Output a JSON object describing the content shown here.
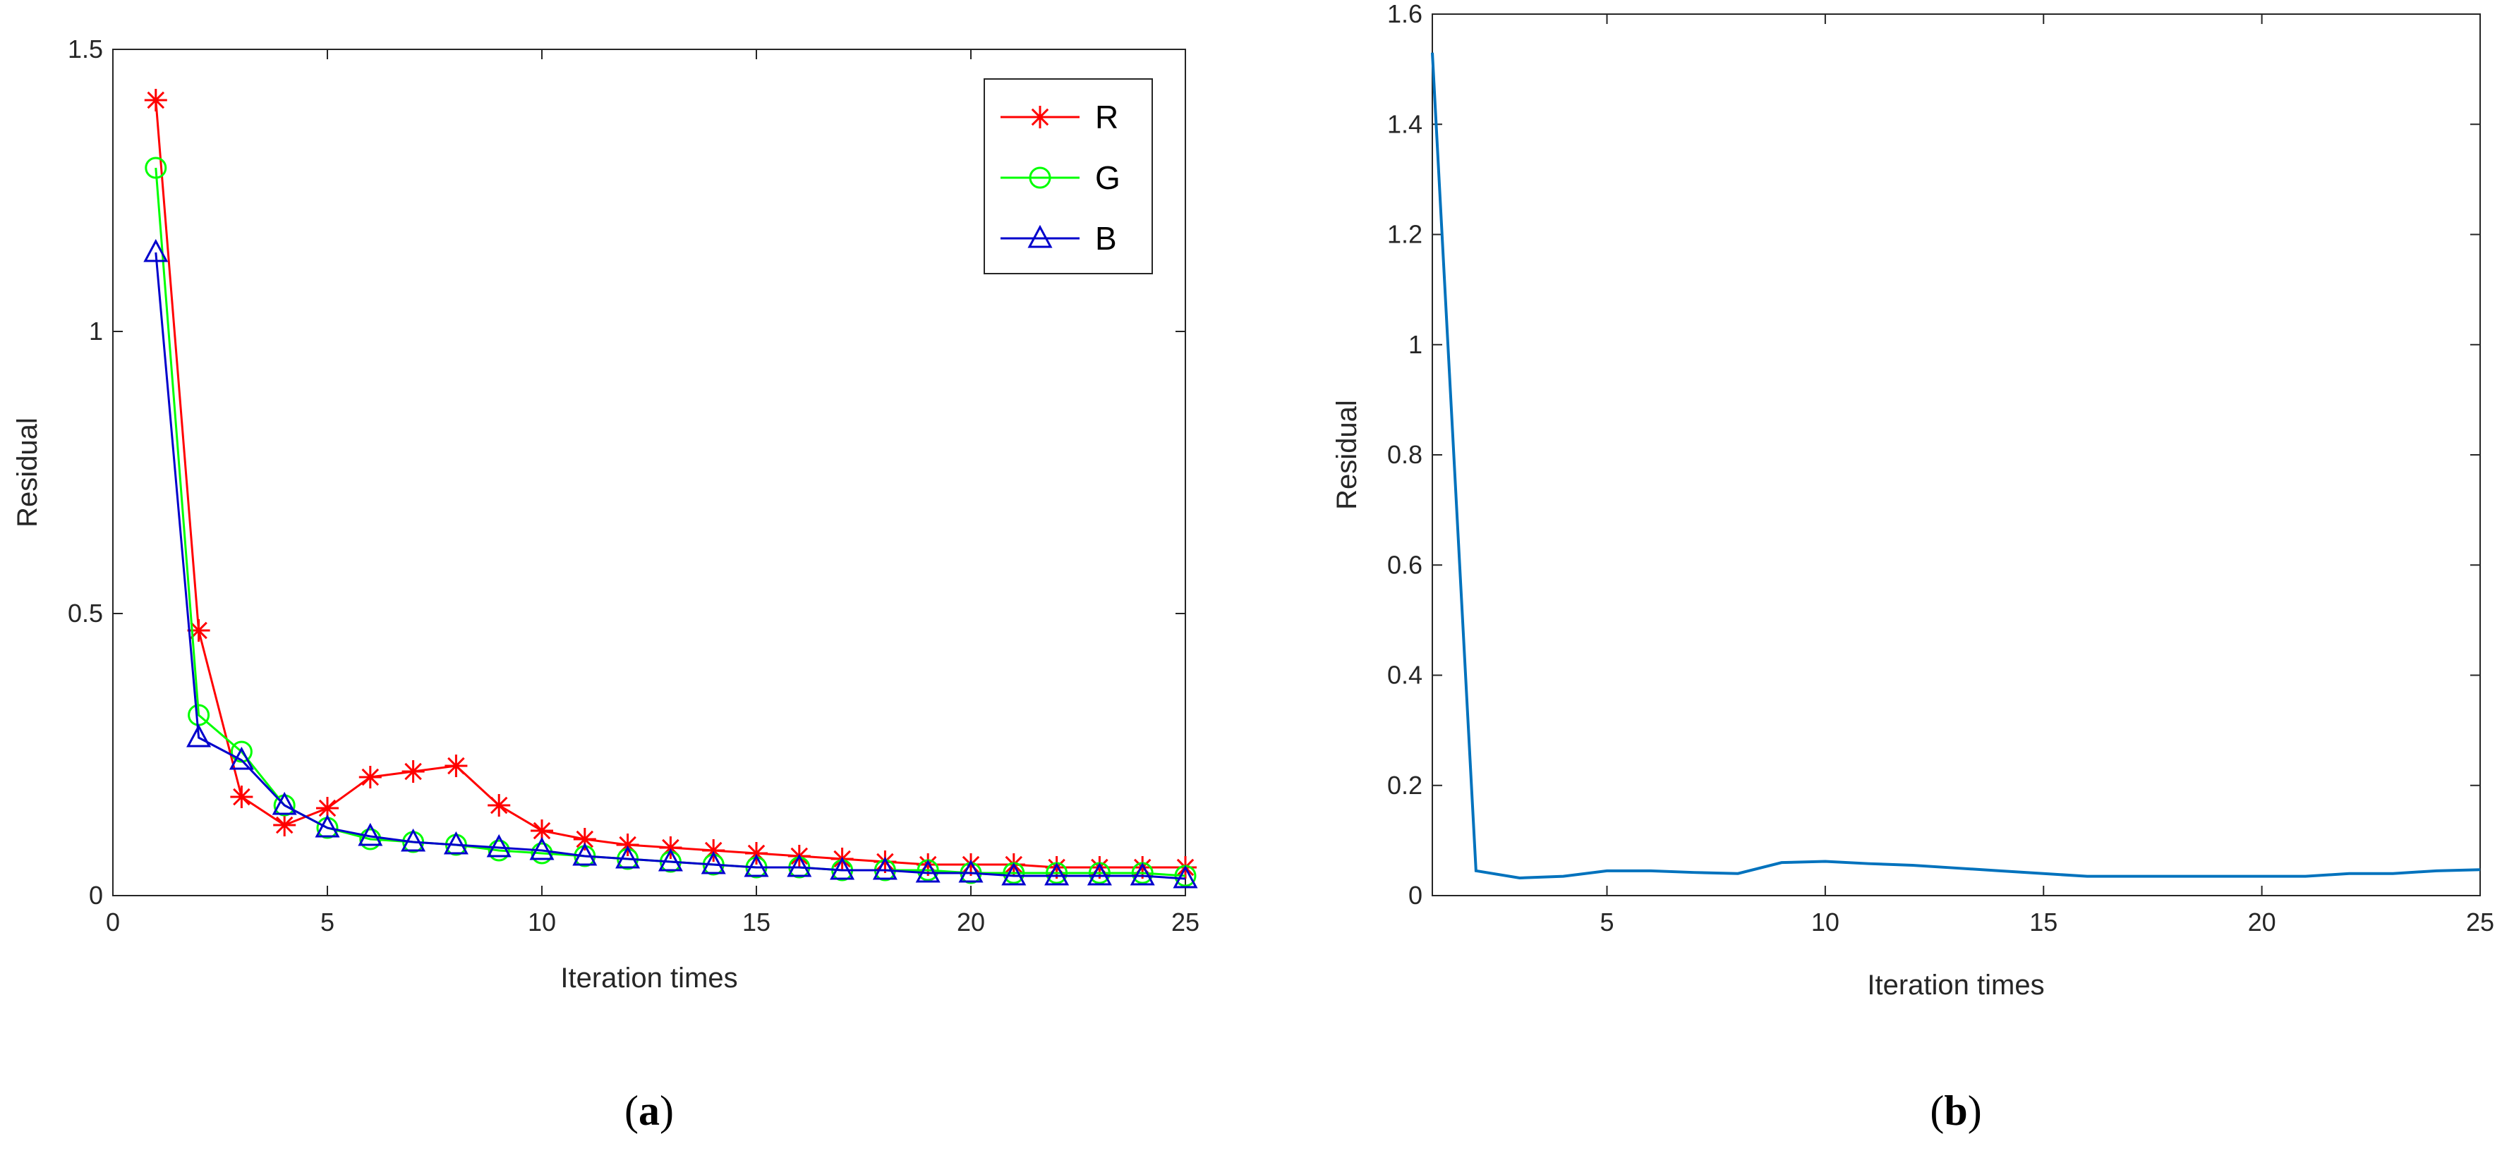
{
  "chart_data": [
    {
      "type": "line",
      "panel_label": "a",
      "xlabel": "Iteration times",
      "ylabel": "Residual",
      "xlim": [
        0,
        25
      ],
      "ylim": [
        0,
        1.5
      ],
      "xticks": [
        0,
        5,
        10,
        15,
        20,
        25
      ],
      "yticks": [
        0,
        0.5,
        1,
        1.5
      ],
      "xtick_labels": [
        "0",
        "5",
        "10",
        "15",
        "20",
        "25"
      ],
      "ytick_labels": [
        "0",
        "0.5",
        "1",
        "1.5"
      ],
      "legend_position": "top-right",
      "x": [
        1,
        2,
        3,
        4,
        5,
        6,
        7,
        8,
        9,
        10,
        11,
        12,
        13,
        14,
        15,
        16,
        17,
        18,
        19,
        20,
        21,
        22,
        23,
        24,
        25
      ],
      "series": [
        {
          "name": "R",
          "color": "#ff0000",
          "marker": "asterisk",
          "values": [
            1.41,
            0.47,
            0.175,
            0.125,
            0.155,
            0.21,
            0.22,
            0.23,
            0.16,
            0.115,
            0.1,
            0.09,
            0.085,
            0.08,
            0.075,
            0.07,
            0.065,
            0.06,
            0.055,
            0.055,
            0.055,
            0.05,
            0.05,
            0.05,
            0.05
          ]
        },
        {
          "name": "G",
          "color": "#00ff00",
          "marker": "circle",
          "values": [
            1.29,
            0.32,
            0.255,
            0.16,
            0.12,
            0.1,
            0.095,
            0.09,
            0.08,
            0.075,
            0.07,
            0.065,
            0.06,
            0.055,
            0.05,
            0.05,
            0.045,
            0.045,
            0.045,
            0.04,
            0.04,
            0.04,
            0.04,
            0.04,
            0.035
          ]
        },
        {
          "name": "B",
          "color": "#0000cc",
          "marker": "triangle",
          "values": [
            1.14,
            0.28,
            0.24,
            0.16,
            0.12,
            0.105,
            0.095,
            0.09,
            0.085,
            0.08,
            0.07,
            0.065,
            0.06,
            0.055,
            0.05,
            0.05,
            0.045,
            0.045,
            0.04,
            0.04,
            0.035,
            0.035,
            0.035,
            0.035,
            0.03
          ]
        }
      ]
    },
    {
      "type": "line",
      "panel_label": "b",
      "xlabel": "Iteration times",
      "ylabel": "Residual",
      "xlim": [
        1,
        25
      ],
      "ylim": [
        0,
        1.6
      ],
      "xticks": [
        5,
        10,
        15,
        20,
        25
      ],
      "yticks": [
        0,
        0.2,
        0.4,
        0.6,
        0.8,
        1,
        1.2,
        1.4,
        1.6
      ],
      "xtick_labels": [
        "5",
        "10",
        "15",
        "20",
        "25"
      ],
      "ytick_labels": [
        "0",
        "0.2",
        "0.4",
        "0.6",
        "0.8",
        "1",
        "1.2",
        "1.4",
        "1.6"
      ],
      "x": [
        1,
        2,
        3,
        4,
        5,
        6,
        7,
        8,
        9,
        10,
        11,
        12,
        13,
        14,
        15,
        16,
        17,
        18,
        19,
        20,
        21,
        22,
        23,
        24,
        25
      ],
      "series": [
        {
          "color": "#0072bd",
          "values": [
            1.53,
            0.045,
            0.032,
            0.035,
            0.045,
            0.045,
            0.042,
            0.04,
            0.06,
            0.062,
            0.058,
            0.055,
            0.05,
            0.045,
            0.04,
            0.035,
            0.035,
            0.035,
            0.035,
            0.035,
            0.035,
            0.04,
            0.04,
            0.045,
            0.047
          ]
        }
      ]
    }
  ]
}
